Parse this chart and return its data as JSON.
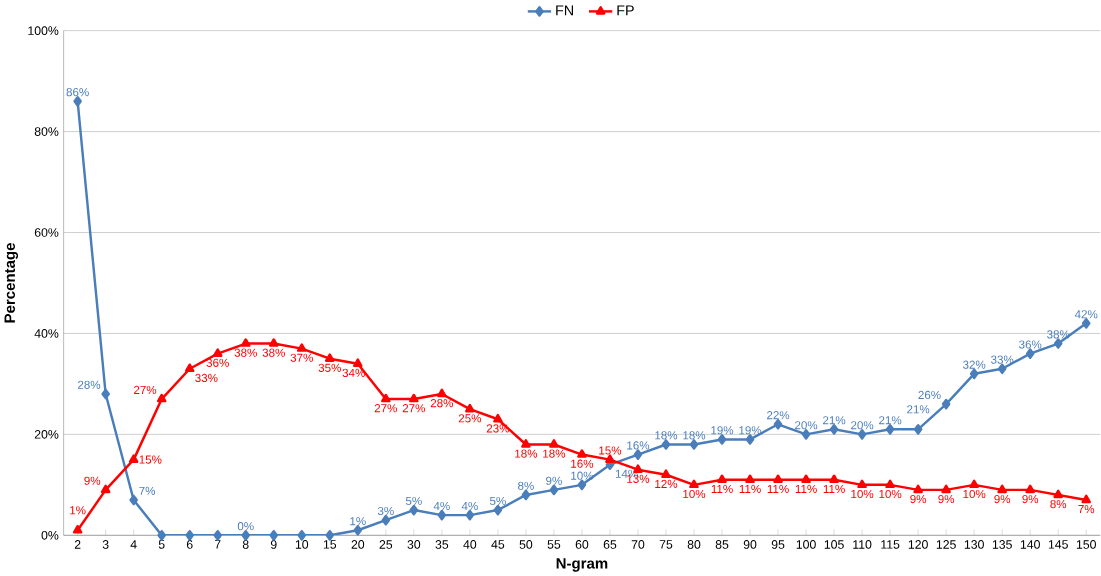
{
  "chart_data": {
    "type": "line",
    "xlabel": "N-gram",
    "ylabel": "Percentage",
    "categories": [
      "2",
      "3",
      "4",
      "5",
      "6",
      "7",
      "8",
      "9",
      "10",
      "15",
      "20",
      "25",
      "30",
      "35",
      "40",
      "45",
      "50",
      "55",
      "60",
      "65",
      "70",
      "75",
      "80",
      "85",
      "90",
      "95",
      "100",
      "105",
      "110",
      "115",
      "120",
      "125",
      "130",
      "135",
      "140",
      "145",
      "150"
    ],
    "ylim": [
      0,
      100
    ],
    "yticks": [
      {
        "value": 0,
        "label": "0%"
      },
      {
        "value": 20,
        "label": "20%"
      },
      {
        "value": 40,
        "label": "40%"
      },
      {
        "value": 60,
        "label": "60%"
      },
      {
        "value": 80,
        "label": "80%"
      },
      {
        "value": 100,
        "label": "100%"
      }
    ],
    "grid": "y",
    "legend": "top",
    "series": [
      {
        "name": "FN",
        "color": "#4a7ebb",
        "marker": "diamond",
        "values": [
          86,
          28,
          7,
          0,
          0,
          0,
          0,
          0,
          0,
          0,
          1,
          3,
          5,
          4,
          4,
          5,
          8,
          9,
          10,
          14,
          16,
          18,
          18,
          19,
          19,
          22,
          20,
          21,
          20,
          21,
          21,
          26,
          32,
          33,
          36,
          38,
          42
        ],
        "value_labels": [
          "86%",
          "28%",
          "7%",
          null,
          null,
          null,
          "0%",
          null,
          null,
          null,
          "1%",
          "3%",
          "5%",
          "4%",
          "4%",
          "5%",
          "8%",
          "9%",
          "10%",
          "14%",
          "16%",
          "18%",
          "18%",
          "19%",
          "19%",
          "22%",
          "20%",
          "21%",
          "20%",
          "21%",
          "21%",
          "26%",
          "32%",
          "33%",
          "36%",
          "38%",
          "42%"
        ]
      },
      {
        "name": "FP",
        "color": "#ff0000",
        "marker": "triangle",
        "values": [
          1,
          9,
          15,
          27,
          33,
          36,
          38,
          38,
          37,
          35,
          34,
          27,
          27,
          28,
          25,
          23,
          18,
          18,
          16,
          15,
          13,
          12,
          10,
          11,
          11,
          11,
          11,
          11,
          10,
          10,
          9,
          9,
          10,
          9,
          9,
          8,
          7
        ],
        "value_labels": [
          "1%",
          "9%",
          "15%",
          "27%",
          "33%",
          "36%",
          "38%",
          "38%",
          "37%",
          "35%",
          "34%",
          "27%",
          "27%",
          "28%",
          "25%",
          "23%",
          "18%",
          "18%",
          "16%",
          "15%",
          "13%",
          "12%",
          "10%",
          "11%",
          "11%",
          "11%",
          "11%",
          "11%",
          "10%",
          "10%",
          "9%",
          "9%",
          "10%",
          "9%",
          "9%",
          "8%",
          "7%"
        ]
      }
    ]
  }
}
